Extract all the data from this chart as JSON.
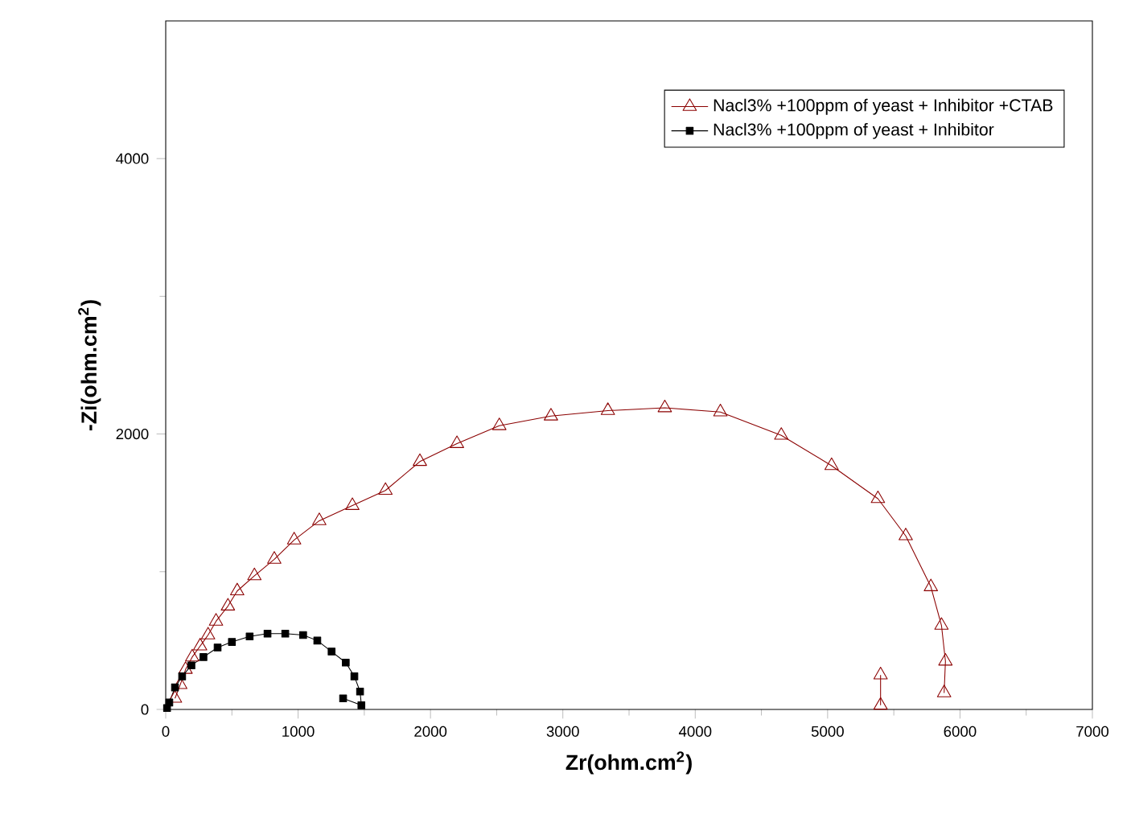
{
  "chart_data": {
    "type": "line",
    "xlabel": "Zr(ohm.cm$^{2}$)",
    "ylabel": "-Zi(ohm.cm$^{2}$)",
    "xlim": [
      0,
      7000
    ],
    "ylim": [
      0,
      5000
    ],
    "xticks": [
      0,
      1000,
      2000,
      3000,
      4000,
      5000,
      6000,
      7000
    ],
    "yticks": [
      0,
      2000,
      4000
    ],
    "grid": false,
    "legend": "top right",
    "series": [
      {
        "name": "Nacl3% +100ppm of yeast + Inhibitor +CTAB",
        "color": "#8b0000",
        "marker": "triangle",
        "x": [
          70,
          110,
          150,
          200,
          260,
          320,
          380,
          470,
          540,
          670,
          820,
          970,
          1160,
          1410,
          1660,
          1920,
          2200,
          2520,
          2910,
          3340,
          3770,
          4190,
          4650,
          5030,
          5380,
          5590,
          5780,
          5860,
          5890,
          5880
        ],
        "values": [
          80,
          180,
          290,
          380,
          460,
          540,
          640,
          750,
          860,
          970,
          1090,
          1230,
          1370,
          1480,
          1590,
          1800,
          1930,
          2060,
          2130,
          2170,
          2190,
          2160,
          1990,
          1770,
          1530,
          1260,
          890,
          610,
          350,
          120
        ]
      },
      {
        "color": "#8b0000",
        "marker": "triangle",
        "x": [
          5400,
          5400
        ],
        "values": [
          250,
          30
        ]
      },
      {
        "name": "Nacl3% +100ppm of yeast + Inhibitor",
        "color": "#000000",
        "marker": "square",
        "x": [
          10,
          27,
          70,
          124,
          194,
          285,
          392,
          500,
          634,
          769,
          903,
          1038,
          1145,
          1253,
          1360,
          1425,
          1468,
          1478,
          1340
        ],
        "values": [
          10,
          50,
          160,
          240,
          320,
          380,
          450,
          490,
          530,
          550,
          550,
          540,
          500,
          420,
          340,
          240,
          130,
          30,
          80
        ]
      }
    ]
  }
}
